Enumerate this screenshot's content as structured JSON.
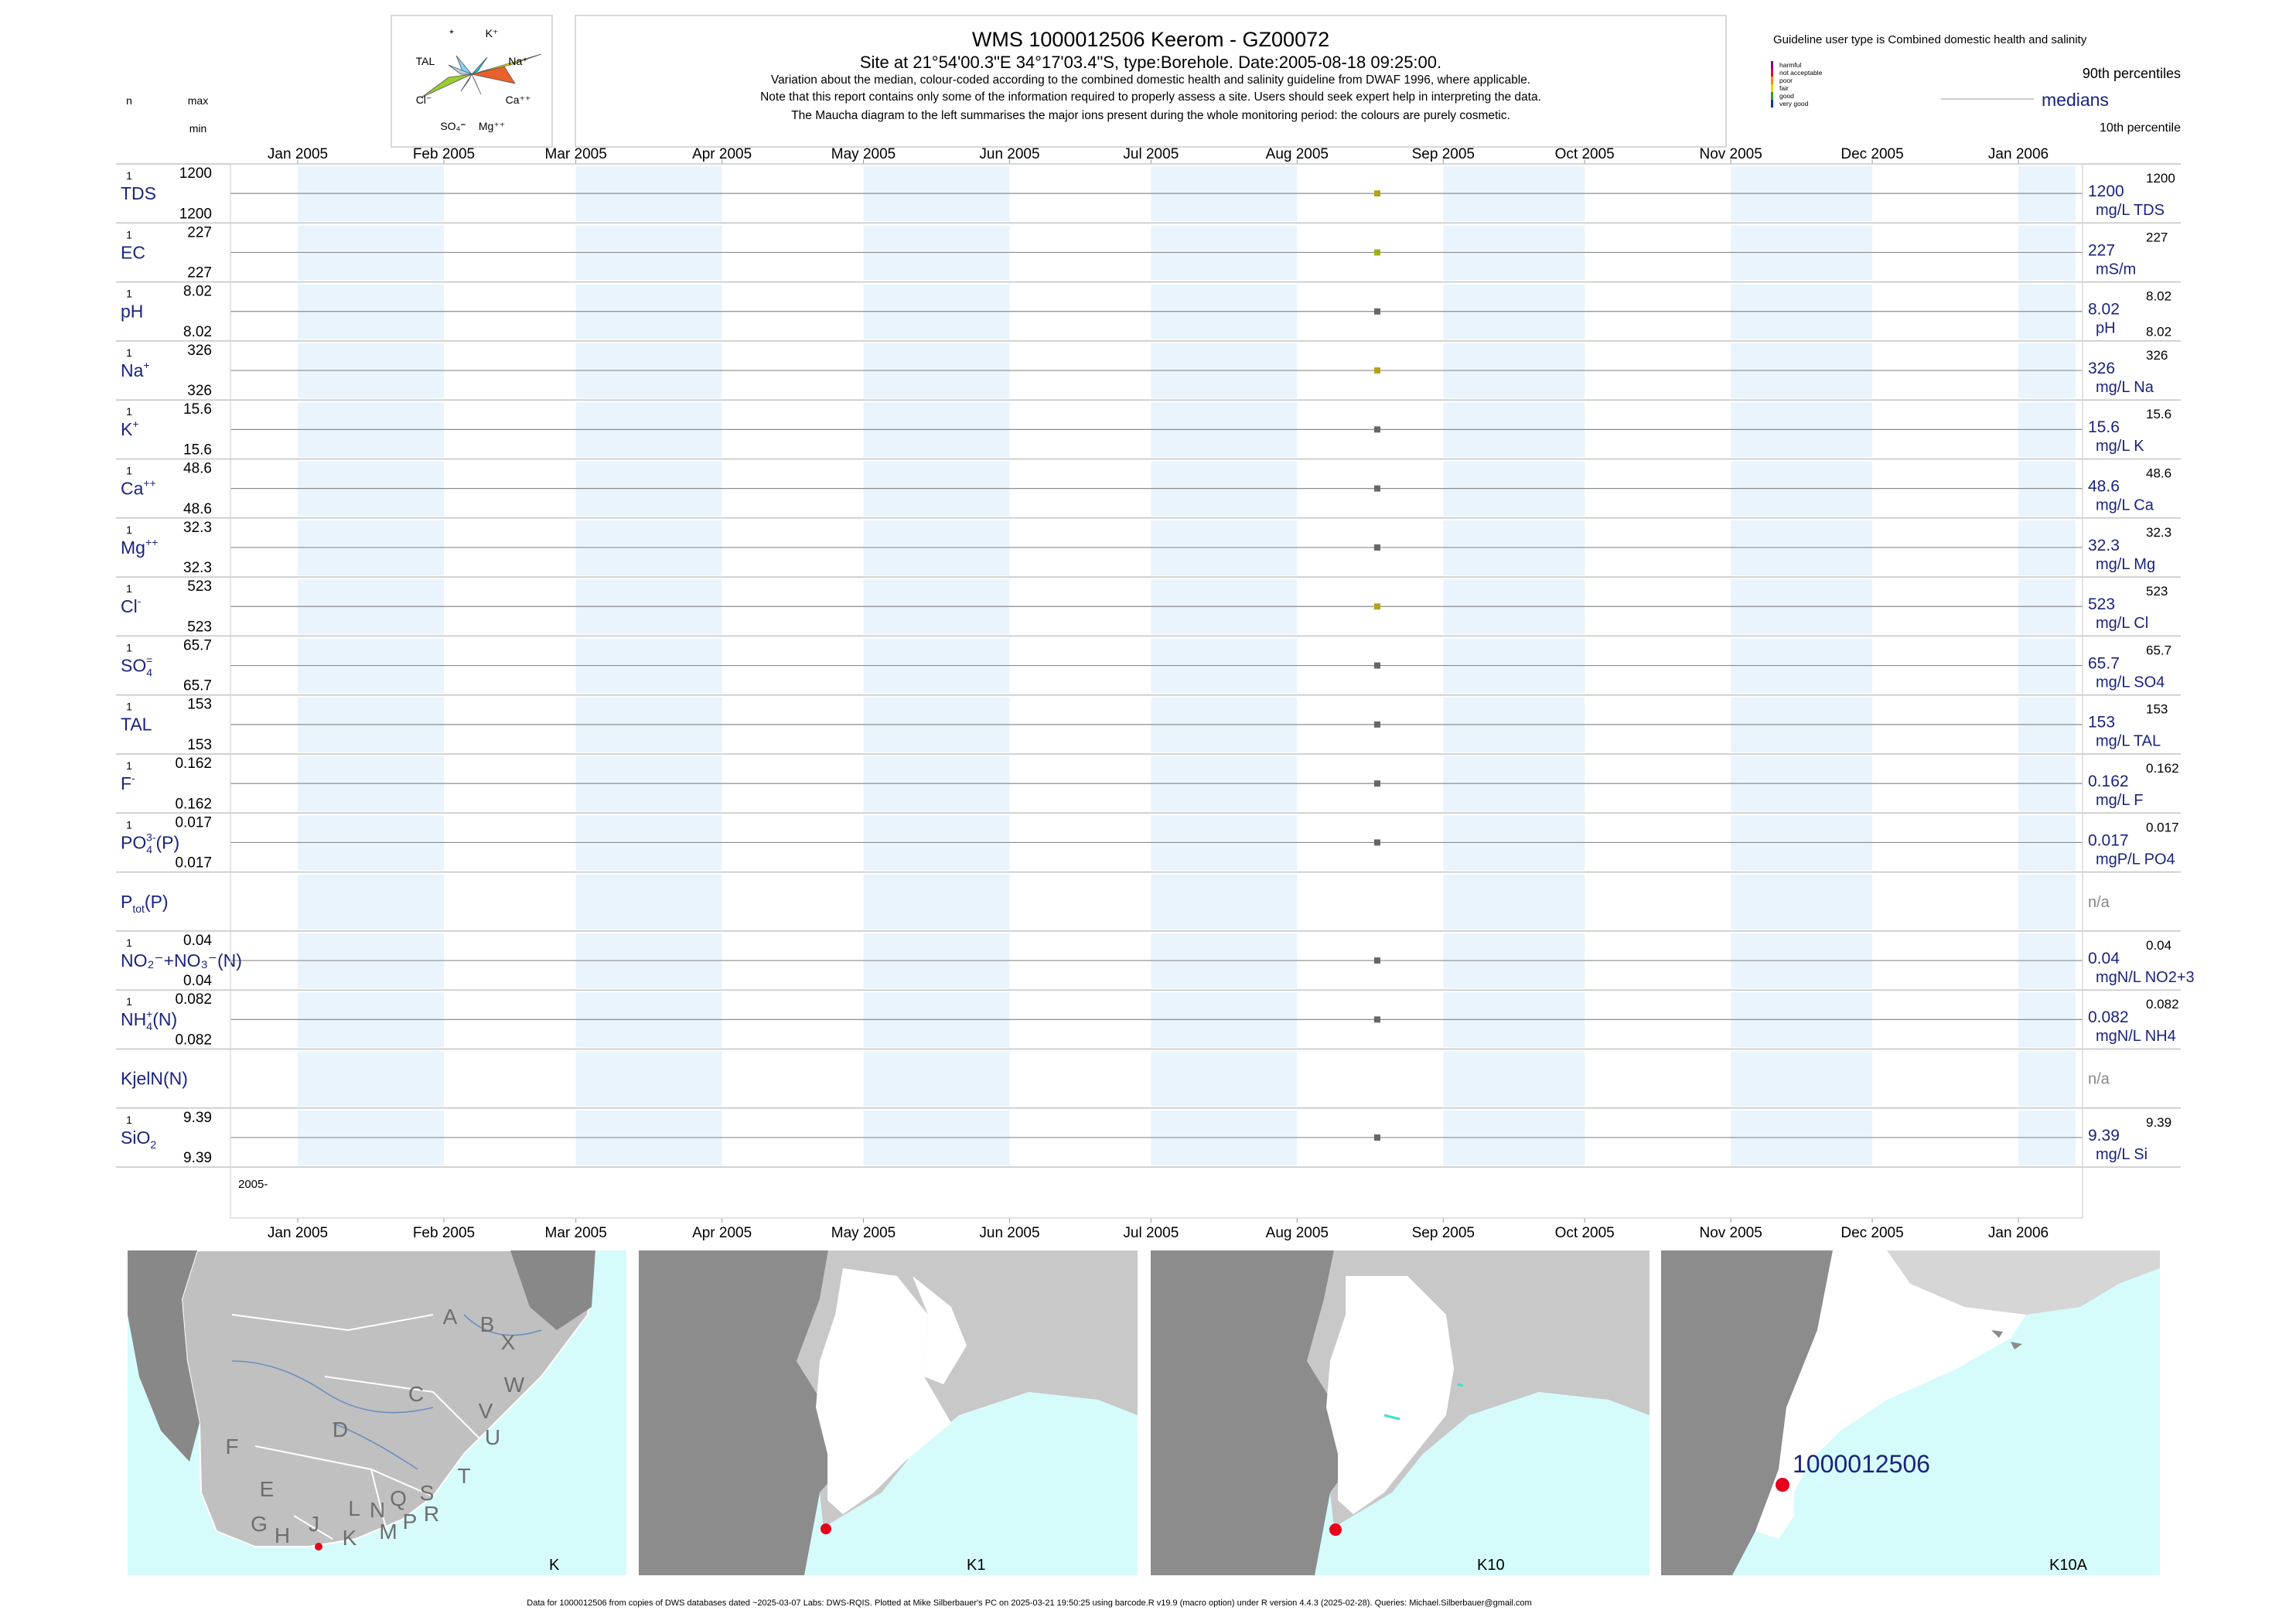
{
  "header": {
    "title": "WMS 1000012506  Keerom - GZ00072",
    "subtitle": "Site at 21°54'00.3\"E 34°17'03.4\"S, type:Borehole. Date:2005-08-18 09:25:00.",
    "notes": [
      "Variation about the median,  colour-coded according to the combined domestic health and salinity guideline from DWAF 1996, where applicable.",
      "Note that this report contains only some of the information required to properly assess a site. Users should seek expert help in interpreting the data.",
      "The Maucha diagram to the left summarises the major ions present during the whole monitoring period: the colours are purely cosmetic."
    ]
  },
  "maucha": {
    "labels": [
      "*",
      "K⁺",
      "TAL",
      "Na⁺",
      "Cl⁻",
      "Ca⁺⁺",
      "SO₄⁼",
      "Mg⁺⁺"
    ]
  },
  "column_headers": {
    "n": "n",
    "max": "max",
    "min": "min"
  },
  "guideline": {
    "title": "Guideline user type is Combined domestic health and salinity",
    "levels": [
      {
        "label": "harmful",
        "color": "#8b008b"
      },
      {
        "label": "not acceptable",
        "color": "#e8003a"
      },
      {
        "label": "poor",
        "color": "#ff8c00"
      },
      {
        "label": "fair",
        "color": "#f2d000"
      },
      {
        "label": "good",
        "color": "#2ca02c"
      },
      {
        "label": "very good",
        "color": "#1f2f9f"
      }
    ],
    "p90_label": "90th percentiles",
    "median_label": "medians",
    "p10_label": "10th percentile"
  },
  "chart_data": {
    "type": "scatter",
    "x_axis": {
      "range": [
        "2005-01-01",
        "2006-01-01"
      ],
      "ticks": [
        "Jan 2005",
        "Feb 2005",
        "Mar 2005",
        "Apr 2005",
        "May 2005",
        "Jun 2005",
        "Jul 2005",
        "Aug 2005",
        "Sep 2005",
        "Oct 2005",
        "Nov 2005",
        "Dec 2005",
        "Jan 2006"
      ],
      "year_label": "2005-"
    },
    "sample_date": "2005-08-18",
    "series": [
      {
        "name": "TDS",
        "n": "1",
        "max": "1200",
        "min": "1200",
        "median": "1200",
        "p90": "1200",
        "p10": "",
        "unit": "mg/L TDS",
        "value": 1200,
        "color": "#b5a21a"
      },
      {
        "name": "EC",
        "n": "1",
        "max": "227",
        "min": "227",
        "median": "227",
        "p90": "227",
        "p10": "",
        "unit": "mS/m",
        "value": 227,
        "color": "#a3ad1a"
      },
      {
        "name": "pH",
        "n": "1",
        "max": "8.02",
        "min": "8.02",
        "median": "8.02",
        "p90": "8.02",
        "p10": "8.02",
        "unit": "pH",
        "value": 8.02,
        "color": "#666666"
      },
      {
        "name": "Na",
        "sup": "+",
        "n": "1",
        "max": "326",
        "min": "326",
        "median": "326",
        "p90": "326",
        "p10": "",
        "unit": "mg/L Na",
        "value": 326,
        "color": "#b5a21a"
      },
      {
        "name": "K",
        "sup": "+",
        "n": "1",
        "max": "15.6",
        "min": "15.6",
        "median": "15.6",
        "p90": "15.6",
        "p10": "",
        "unit": "mg/L K",
        "value": 15.6,
        "color": "#666666"
      },
      {
        "name": "Ca",
        "sup": "++",
        "n": "1",
        "max": "48.6",
        "min": "48.6",
        "median": "48.6",
        "p90": "48.6",
        "p10": "",
        "unit": "mg/L Ca",
        "value": 48.6,
        "color": "#666666"
      },
      {
        "name": "Mg",
        "sup": "++",
        "n": "1",
        "max": "32.3",
        "min": "32.3",
        "median": "32.3",
        "p90": "32.3",
        "p10": "",
        "unit": "mg/L Mg",
        "value": 32.3,
        "color": "#666666"
      },
      {
        "name": "Cl",
        "sup": "-",
        "n": "1",
        "max": "523",
        "min": "523",
        "median": "523",
        "p90": "523",
        "p10": "",
        "unit": "mg/L Cl",
        "value": 523,
        "color": "#b5a21a"
      },
      {
        "name": "SO",
        "sub": "4",
        "sup": "=",
        "n": "1",
        "max": "65.7",
        "min": "65.7",
        "median": "65.7",
        "p90": "65.7",
        "p10": "",
        "unit": "mg/L SO4",
        "value": 65.7,
        "color": "#666666"
      },
      {
        "name": "TAL",
        "n": "1",
        "max": "153",
        "min": "153",
        "median": "153",
        "p90": "153",
        "p10": "",
        "unit": "mg/L TAL",
        "value": 153,
        "color": "#666666"
      },
      {
        "name": "F",
        "sup": "-",
        "n": "1",
        "max": "0.162",
        "min": "0.162",
        "median": "0.162",
        "p90": "0.162",
        "p10": "",
        "unit": "mg/L F",
        "value": 0.162,
        "color": "#666666"
      },
      {
        "name": "PO",
        "sub": "4",
        "sup": "3-",
        "post": "(P)",
        "n": "1",
        "max": "0.017",
        "min": "0.017",
        "median": "0.017",
        "p90": "0.017",
        "p10": "",
        "unit": "mgP/L PO4",
        "value": 0.017,
        "color": "#666666"
      },
      {
        "name": "P",
        "sub": "tot",
        "post": "(P)",
        "n": "",
        "max": "",
        "min": "",
        "median": "n/a",
        "p90": "",
        "p10": "",
        "unit": "",
        "value": null,
        "color": "#666666"
      },
      {
        "name": "NO₂⁻+NO₃⁻(N)",
        "n": "1",
        "max": "0.04",
        "min": "0.04",
        "median": "0.04",
        "p90": "0.04",
        "p10": "",
        "unit": "mgN/L NO2+3",
        "value": 0.04,
        "color": "#666666"
      },
      {
        "name": "NH",
        "sub": "4",
        "sup": "+",
        "post": "(N)",
        "n": "1",
        "max": "0.082",
        "min": "0.082",
        "median": "0.082",
        "p90": "0.082",
        "p10": "",
        "unit": "mgN/L NH4",
        "value": 0.082,
        "color": "#666666"
      },
      {
        "name": "KjelN(N)",
        "n": "",
        "max": "",
        "min": "",
        "median": "n/a",
        "p90": "",
        "p10": "",
        "unit": "",
        "value": null,
        "color": "#666666"
      },
      {
        "name": "SiO",
        "sub": "2",
        "n": "1",
        "max": "9.39",
        "min": "9.39",
        "median": "9.39",
        "p90": "9.39",
        "p10": "",
        "unit": "mg/L Si",
        "value": 9.39,
        "color": "#666666"
      }
    ]
  },
  "maps": [
    {
      "label": "K",
      "regions": [
        "A",
        "B",
        "X",
        "W",
        "C",
        "V",
        "D",
        "U",
        "F",
        "E",
        "T",
        "S",
        "R",
        "Q",
        "L",
        "N",
        "G",
        "H",
        "J",
        "K",
        "M",
        "P"
      ]
    },
    {
      "label": "K1"
    },
    {
      "label": "K10"
    },
    {
      "label": "K10A",
      "site_label": "1000012506"
    }
  ],
  "marker_color": "#e8001c",
  "footer": "Data for 1000012506 from copies of DWS databases dated ~2025-03-07 Labs: DWS-RQIS. Plotted at Mike Silberbauer's PC on 2025-03-21 19:50:25 using barcode.R v19.9 (macro option) under R version 4.4.3 (2025-02-28). Queries: Michael.Silberbauer@gmail.com"
}
